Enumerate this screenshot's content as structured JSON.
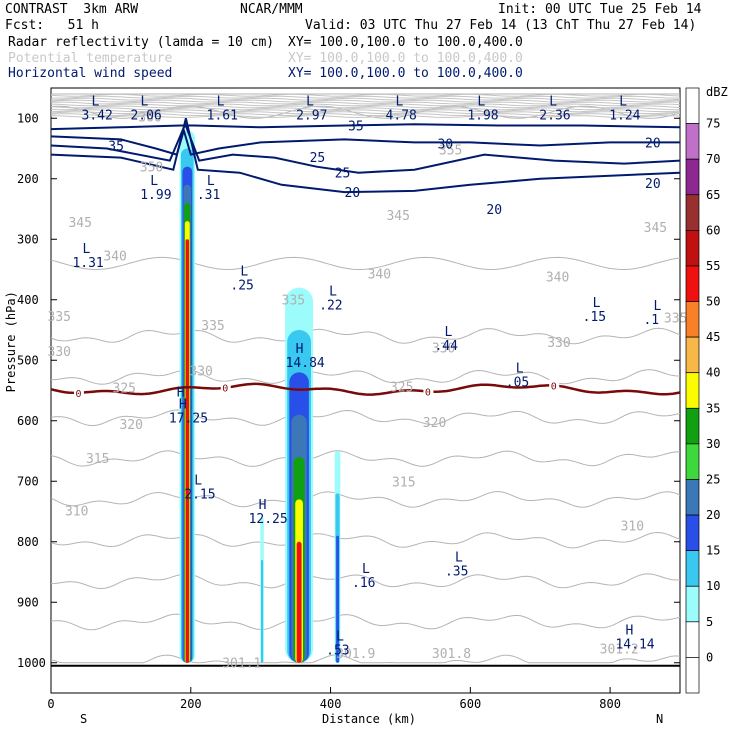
{
  "header": {
    "model": "CONTRAST  3km ARW",
    "center": "NCAR/MMM",
    "init": "Init: 00 UTC Tue 25 Feb 14",
    "fcst": "Fcst:   51 h",
    "valid": "Valid: 03 UTC Thu 27 Feb 14 (13 ChT Thu 27 Feb 14)",
    "fields": [
      {
        "name": "Radar reflectivity (lamda = 10 cm)",
        "xy": "XY= 100.0,100.0 to 100.0,400.0",
        "color": "#000000"
      },
      {
        "name": "Potential temperature",
        "xy": "XY= 100.0,100.0 to 100.0,400.0",
        "color": "#c0c0c0"
      },
      {
        "name": "Horizontal wind speed",
        "xy": "XY= 100.0,100.0 to 100.0,400.0",
        "color": "#001a6e"
      }
    ]
  },
  "chart_data": {
    "type": "cross-section",
    "xlabel": "Distance (km)",
    "ylabel": "Pressure (hPa)",
    "xlim": [
      0,
      900
    ],
    "ylim": [
      1050,
      50
    ],
    "x_ticks": [
      0,
      200,
      400,
      600,
      800
    ],
    "y_ticks": [
      100,
      200,
      300,
      400,
      500,
      600,
      700,
      800,
      900,
      1000
    ],
    "x_end_labels": {
      "left": "S",
      "right": "N"
    },
    "colorbar": {
      "title": "dBZ",
      "levels": [
        0,
        5,
        10,
        15,
        20,
        25,
        30,
        35,
        40,
        45,
        50,
        55,
        60,
        65,
        70,
        75
      ],
      "colors": [
        "#ffffff",
        "#9cfcfc",
        "#38c8f0",
        "#2850e8",
        "#3c78b8",
        "#3cd83c",
        "#10a010",
        "#fcfc00",
        "#f8b848",
        "#f88028",
        "#f01010",
        "#c01010",
        "#983030",
        "#8c2890",
        "#c070c8",
        "#ffffff"
      ]
    },
    "theta_labels": [
      {
        "x": 125,
        "p": 105,
        "t": "360"
      },
      {
        "x": 555,
        "p": 160,
        "t": "355"
      },
      {
        "x": 127,
        "p": 188,
        "t": "350"
      },
      {
        "x": 25,
        "p": 280,
        "t": "345"
      },
      {
        "x": 480,
        "p": 268,
        "t": "345"
      },
      {
        "x": 848,
        "p": 288,
        "t": "345"
      },
      {
        "x": 75,
        "p": 335,
        "t": "340"
      },
      {
        "x": 453,
        "p": 365,
        "t": "340"
      },
      {
        "x": 708,
        "p": 370,
        "t": "340"
      },
      {
        "x": 330,
        "p": 408,
        "t": "335"
      },
      {
        "x": -5,
        "p": 435,
        "t": "335"
      },
      {
        "x": 215,
        "p": 450,
        "t": "335"
      },
      {
        "x": 877,
        "p": 438,
        "t": "335"
      },
      {
        "x": -5,
        "p": 493,
        "t": "330"
      },
      {
        "x": 545,
        "p": 487,
        "t": "330"
      },
      {
        "x": 710,
        "p": 478,
        "t": "330"
      },
      {
        "x": 198,
        "p": 525,
        "t": "330"
      },
      {
        "x": 88,
        "p": 553,
        "t": "325"
      },
      {
        "x": 485,
        "p": 552,
        "t": "325"
      },
      {
        "x": 98,
        "p": 614,
        "t": "320"
      },
      {
        "x": 532,
        "p": 610,
        "t": "320"
      },
      {
        "x": 50,
        "p": 670,
        "t": "315"
      },
      {
        "x": 488,
        "p": 709,
        "t": "315"
      },
      {
        "x": 20,
        "p": 757,
        "t": "310"
      },
      {
        "x": 815,
        "p": 781,
        "t": "310"
      },
      {
        "x": 245,
        "p": 1008,
        "t": "301.1"
      },
      {
        "x": 408,
        "p": 992,
        "t": "301.9"
      },
      {
        "x": 545,
        "p": 992,
        "t": "301.8"
      },
      {
        "x": 785,
        "p": 985,
        "t": "301.2"
      }
    ],
    "hl_markers": [
      {
        "x": 58,
        "p": 79,
        "k": "L",
        "v": "3.42"
      },
      {
        "x": 128,
        "p": 79,
        "k": "L",
        "v": "2.06"
      },
      {
        "x": 237,
        "p": 79,
        "k": "L",
        "v": "1.61"
      },
      {
        "x": 365,
        "p": 79,
        "k": "L",
        "v": "2.97"
      },
      {
        "x": 493,
        "p": 79,
        "k": "L",
        "v": "4.78"
      },
      {
        "x": 610,
        "p": 79,
        "k": "L",
        "v": "1.98"
      },
      {
        "x": 713,
        "p": 79,
        "k": "L",
        "v": "2.36"
      },
      {
        "x": 813,
        "p": 79,
        "k": "L",
        "v": "1.24"
      },
      {
        "x": 142,
        "p": 210,
        "k": "L",
        "v": "1.99"
      },
      {
        "x": 223,
        "p": 210,
        "k": "L",
        "v": ".31"
      },
      {
        "x": 45,
        "p": 323,
        "k": "L",
        "v": "1.31"
      },
      {
        "x": 271,
        "p": 360,
        "k": "L",
        "v": ".25"
      },
      {
        "x": 398,
        "p": 393,
        "k": "L",
        "v": ".22"
      },
      {
        "x": 563,
        "p": 460,
        "k": "L",
        "v": ".44"
      },
      {
        "x": 862,
        "p": 417,
        "k": "L",
        "v": ".1"
      },
      {
        "x": 775,
        "p": 412,
        "k": "L",
        "v": ".15"
      },
      {
        "x": 350,
        "p": 488,
        "k": "H",
        "v": "14.84"
      },
      {
        "x": 665,
        "p": 520,
        "k": "L",
        "v": ".05"
      },
      {
        "x": 183,
        "p": 580,
        "k": "H",
        "v": "17.25"
      },
      {
        "x": 205,
        "p": 705,
        "k": "L",
        "v": "2.15"
      },
      {
        "x": 297,
        "p": 746,
        "k": "H",
        "v": "12.25"
      },
      {
        "x": 578,
        "p": 833,
        "k": "L",
        "v": ".35"
      },
      {
        "x": 445,
        "p": 852,
        "k": "L",
        "v": ".16"
      },
      {
        "x": 408,
        "p": 963,
        "k": "L",
        "v": ".53"
      },
      {
        "x": 822,
        "p": 953,
        "k": "H",
        "v": "14.14"
      },
      {
        "x": 180,
        "p": 560,
        "k": "H",
        "v": ""
      }
    ],
    "wind_labels": [
      {
        "x": 82,
        "p": 153,
        "t": "35"
      },
      {
        "x": 425,
        "p": 120,
        "t": "35"
      },
      {
        "x": 370,
        "p": 172,
        "t": "25"
      },
      {
        "x": 406,
        "p": 198,
        "t": "25"
      },
      {
        "x": 553,
        "p": 150,
        "t": "30"
      },
      {
        "x": 420,
        "p": 230,
        "t": "20"
      },
      {
        "x": 623,
        "p": 258,
        "t": "20"
      },
      {
        "x": 850,
        "p": 148,
        "t": "20"
      },
      {
        "x": 850,
        "p": 215,
        "t": "20"
      }
    ],
    "freezing_level": {
      "label": "0",
      "label_x": [
        40,
        250,
        540,
        720
      ]
    }
  }
}
